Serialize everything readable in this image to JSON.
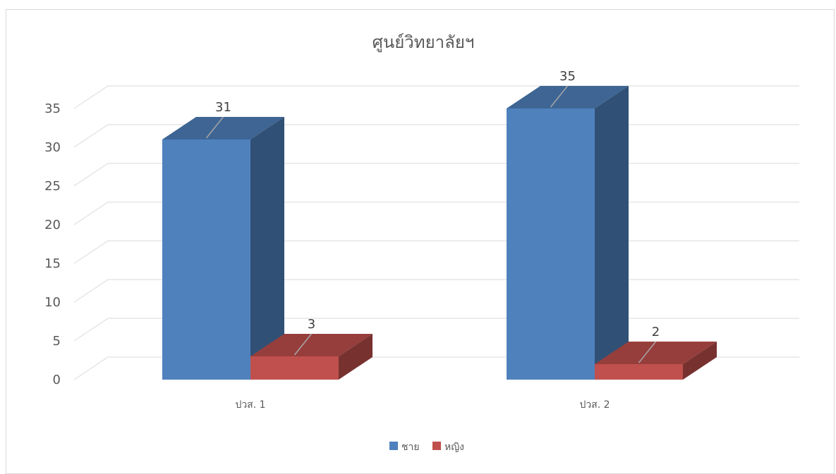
{
  "chart_data": {
    "type": "bar",
    "title": "ศูนย์วิทยาลัยฯ",
    "categories": [
      "ปวส. 1",
      "ปวส. 2"
    ],
    "series": [
      {
        "name": "ชาย",
        "values": [
          31,
          35
        ],
        "color": "#4f81bd"
      },
      {
        "name": "หญิง",
        "values": [
          3,
          2
        ],
        "color": "#c0504d"
      }
    ],
    "ylim": [
      0,
      35
    ],
    "yticks": [
      "0",
      "5",
      "10",
      "15",
      "20",
      "25",
      "30",
      "35"
    ],
    "grid": true,
    "legend_position": "bottom",
    "style": "3d-column"
  }
}
